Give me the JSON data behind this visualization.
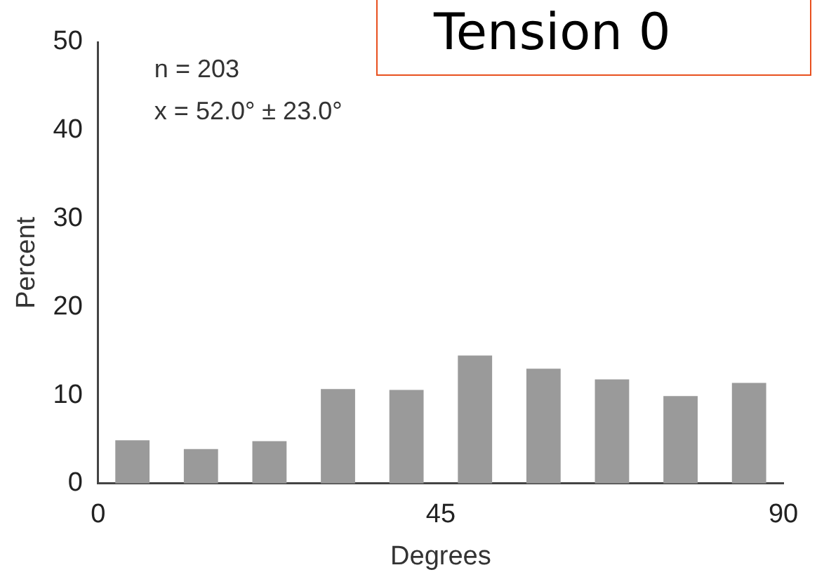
{
  "chart_data": {
    "type": "histogram",
    "xlabel": "Degrees",
    "ylabel": "Percent",
    "bins": [
      0,
      9,
      18,
      27,
      36,
      45,
      54,
      63,
      72,
      81,
      90
    ],
    "values": [
      4.9,
      3.9,
      4.8,
      10.7,
      10.6,
      14.5,
      13,
      11.8,
      9.9,
      11.4
    ],
    "color": "#9a9a9a",
    "xlim": [
      0,
      90
    ],
    "xticks": [
      0,
      45,
      90
    ],
    "ylim": [
      0,
      50
    ],
    "yticks": [
      0,
      10,
      20,
      30,
      40,
      50
    ],
    "grid": false,
    "legend": false,
    "annotations": [
      "Tension 0",
      "n = 203",
      "x = 52.0° ± 23.0°"
    ]
  }
}
